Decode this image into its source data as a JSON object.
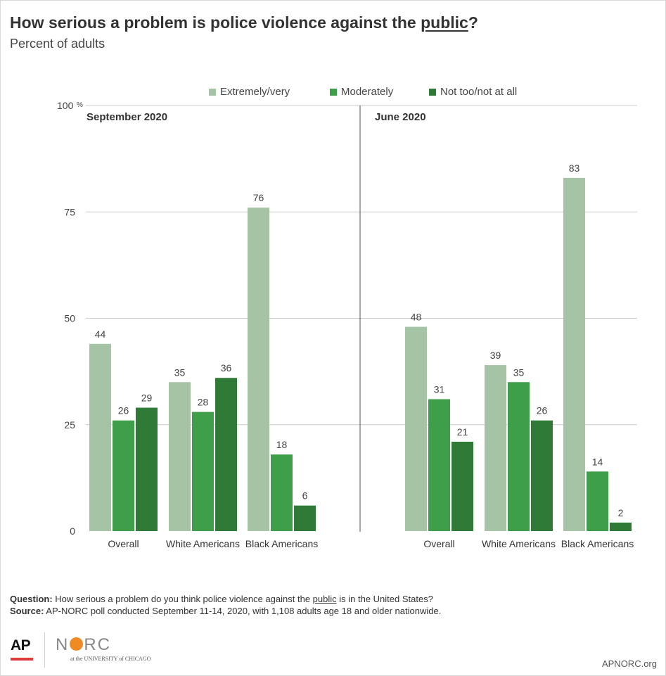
{
  "header": {
    "title_prefix": "How serious a problem is police violence against the ",
    "title_underlined": "public",
    "title_suffix": "?",
    "subtitle": "Percent of adults"
  },
  "chart_data": {
    "type": "bar",
    "legend_position": "top-center",
    "y_axis": {
      "min": 0,
      "max": 100,
      "ticks": [
        0,
        25,
        50,
        75,
        100
      ],
      "tick_labels": [
        "0",
        "25",
        "50",
        "75",
        "100"
      ],
      "top_unit": "%"
    },
    "grid": true,
    "series_names": [
      "Extremely/very",
      "Moderately",
      "Not too/not at all"
    ],
    "colors": [
      "#a5c3a5",
      "#3f9e49",
      "#2e7a36"
    ],
    "panels": [
      {
        "label": "September 2020",
        "categories": [
          "Overall",
          "White Americans",
          "Black Americans"
        ],
        "series": [
          {
            "name": "Extremely/very",
            "values": [
              44,
              35,
              76
            ]
          },
          {
            "name": "Moderately",
            "values": [
              26,
              28,
              18
            ]
          },
          {
            "name": "Not too/not at all",
            "values": [
              29,
              36,
              6
            ]
          }
        ]
      },
      {
        "label": "June 2020",
        "categories": [
          "Overall",
          "White Americans",
          "Black Americans"
        ],
        "series": [
          {
            "name": "Extremely/very",
            "values": [
              48,
              39,
              83
            ]
          },
          {
            "name": "Moderately",
            "values": [
              31,
              35,
              14
            ]
          },
          {
            "name": "Not too/not at all",
            "values": [
              21,
              26,
              2
            ]
          }
        ]
      }
    ]
  },
  "footer": {
    "question_label": "Question:",
    "question_prefix": " How serious a problem do you think police violence against the ",
    "question_underlined": "public",
    "question_suffix": " is in the United States?",
    "source_label": "Source:",
    "source_text": " AP-NORC poll conducted September 11-14, 2020, with 1,108 adults age 18 and older nationwide."
  },
  "logos": {
    "ap": "AP",
    "norc_n": "N",
    "norc_rc": "RC",
    "norc_sub": "at the UNIVERSITY of CHICAGO"
  },
  "site": "APNORC.org"
}
